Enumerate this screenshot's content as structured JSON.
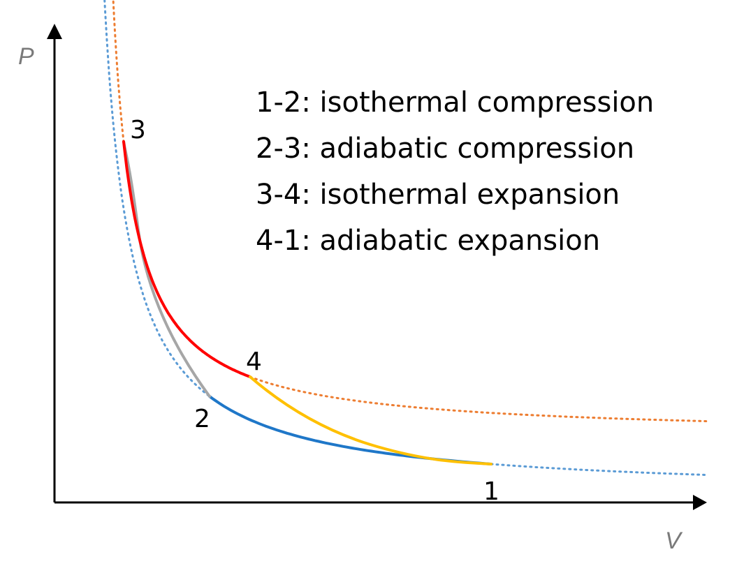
{
  "axes": {
    "x_label": "V",
    "y_label": "P"
  },
  "points": [
    {
      "id": "1",
      "label": "1"
    },
    {
      "id": "2",
      "label": "2"
    },
    {
      "id": "3",
      "label": "3"
    },
    {
      "id": "4",
      "label": "4"
    }
  ],
  "processes": [
    {
      "id": "1-2",
      "text": "1-2: isothermal compression",
      "color": "#1f77c8"
    },
    {
      "id": "2-3",
      "text": "2-3: adiabatic compression",
      "color": "#a6a6a6"
    },
    {
      "id": "3-4",
      "text": "3-4: isothermal expansion",
      "color": "#ff0000"
    },
    {
      "id": "4-1",
      "text": "4-1: adiabatic expansion",
      "color": "#ffc000"
    }
  ],
  "isotherms": {
    "low_color": "#5b9bd5",
    "high_color": "#ed7d31"
  }
}
